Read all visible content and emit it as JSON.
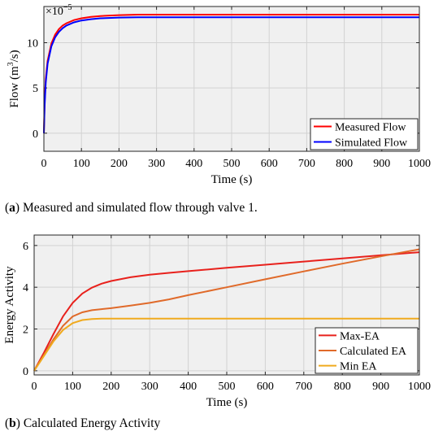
{
  "captions": {
    "a": {
      "label": "a",
      "text": " Measured and simulated flow through valve 1."
    },
    "b": {
      "label": "b",
      "text": " Calculated Energy Activity"
    }
  },
  "chart_data": [
    {
      "id": "a",
      "type": "line",
      "title": "",
      "xlabel": "Time (s)",
      "ylabel": "Flow (m3/s)",
      "ylabel_parts": {
        "pre": "Flow (m",
        "sup": "3",
        "post": "/s)"
      },
      "exponent_label": {
        "base": "×10",
        "exp": "−5"
      },
      "xlim": [
        0,
        1000
      ],
      "ylim": [
        -2,
        14
      ],
      "xticks": [
        0,
        100,
        200,
        300,
        400,
        500,
        600,
        700,
        800,
        900,
        1000
      ],
      "yticks": [
        0,
        5,
        10
      ],
      "grid": true,
      "legend_position": "bottom-right",
      "series": [
        {
          "name": "Measured Flow",
          "color": "#ff0000",
          "x": [
            0,
            2,
            5,
            10,
            20,
            30,
            40,
            50,
            60,
            80,
            100,
            125,
            150,
            200,
            250,
            300,
            400,
            500,
            600,
            700,
            800,
            900,
            1000
          ],
          "y": [
            0,
            3.5,
            6.0,
            8.0,
            9.9,
            10.9,
            11.5,
            11.9,
            12.15,
            12.5,
            12.7,
            12.85,
            12.95,
            13.05,
            13.1,
            13.1,
            13.1,
            13.1,
            13.1,
            13.1,
            13.1,
            13.1,
            13.1
          ]
        },
        {
          "name": "Simulated Flow",
          "color": "#0000ff",
          "x": [
            0,
            2,
            5,
            10,
            20,
            30,
            40,
            50,
            60,
            80,
            100,
            125,
            150,
            200,
            250,
            300,
            400,
            500,
            600,
            700,
            800,
            900,
            1000
          ],
          "y": [
            0,
            3.0,
            5.6,
            7.7,
            9.6,
            10.6,
            11.2,
            11.6,
            11.9,
            12.25,
            12.45,
            12.6,
            12.7,
            12.78,
            12.8,
            12.8,
            12.8,
            12.8,
            12.8,
            12.8,
            12.8,
            12.8,
            12.8
          ]
        }
      ]
    },
    {
      "id": "b",
      "type": "line",
      "title": "",
      "xlabel": "Time (s)",
      "ylabel": "Energy Activity",
      "xlim": [
        0,
        1000
      ],
      "ylim": [
        -0.2,
        6.5
      ],
      "xticks": [
        0,
        100,
        200,
        300,
        400,
        500,
        600,
        700,
        800,
        900,
        1000
      ],
      "yticks": [
        0,
        2,
        4,
        6
      ],
      "grid": true,
      "legend_position": "bottom-right",
      "series": [
        {
          "name": "Max-EA",
          "color": "#e8211c",
          "x": [
            0,
            25,
            50,
            75,
            100,
            125,
            150,
            175,
            200,
            250,
            300,
            350,
            400,
            500,
            600,
            700,
            800,
            900,
            1000
          ],
          "y": [
            0,
            0.85,
            1.75,
            2.6,
            3.25,
            3.7,
            3.98,
            4.17,
            4.3,
            4.48,
            4.6,
            4.69,
            4.77,
            4.93,
            5.08,
            5.23,
            5.38,
            5.53,
            5.68
          ]
        },
        {
          "name": "Calculated EA",
          "color": "#e06a2a",
          "x": [
            0,
            25,
            50,
            75,
            100,
            125,
            150,
            175,
            200,
            250,
            300,
            350,
            400,
            500,
            600,
            700,
            800,
            900,
            1000
          ],
          "y": [
            0,
            0.75,
            1.5,
            2.15,
            2.6,
            2.8,
            2.9,
            2.95,
            3.0,
            3.12,
            3.25,
            3.42,
            3.62,
            4.0,
            4.38,
            4.76,
            5.13,
            5.48,
            5.82
          ]
        },
        {
          "name": "Min EA",
          "color": "#f0aa1e",
          "x": [
            0,
            25,
            50,
            75,
            100,
            125,
            150,
            175,
            200,
            250,
            300,
            400,
            500,
            600,
            700,
            800,
            900,
            1000
          ],
          "y": [
            0,
            0.7,
            1.4,
            1.95,
            2.28,
            2.43,
            2.48,
            2.5,
            2.5,
            2.5,
            2.5,
            2.5,
            2.5,
            2.5,
            2.5,
            2.5,
            2.5,
            2.5
          ]
        }
      ]
    }
  ]
}
